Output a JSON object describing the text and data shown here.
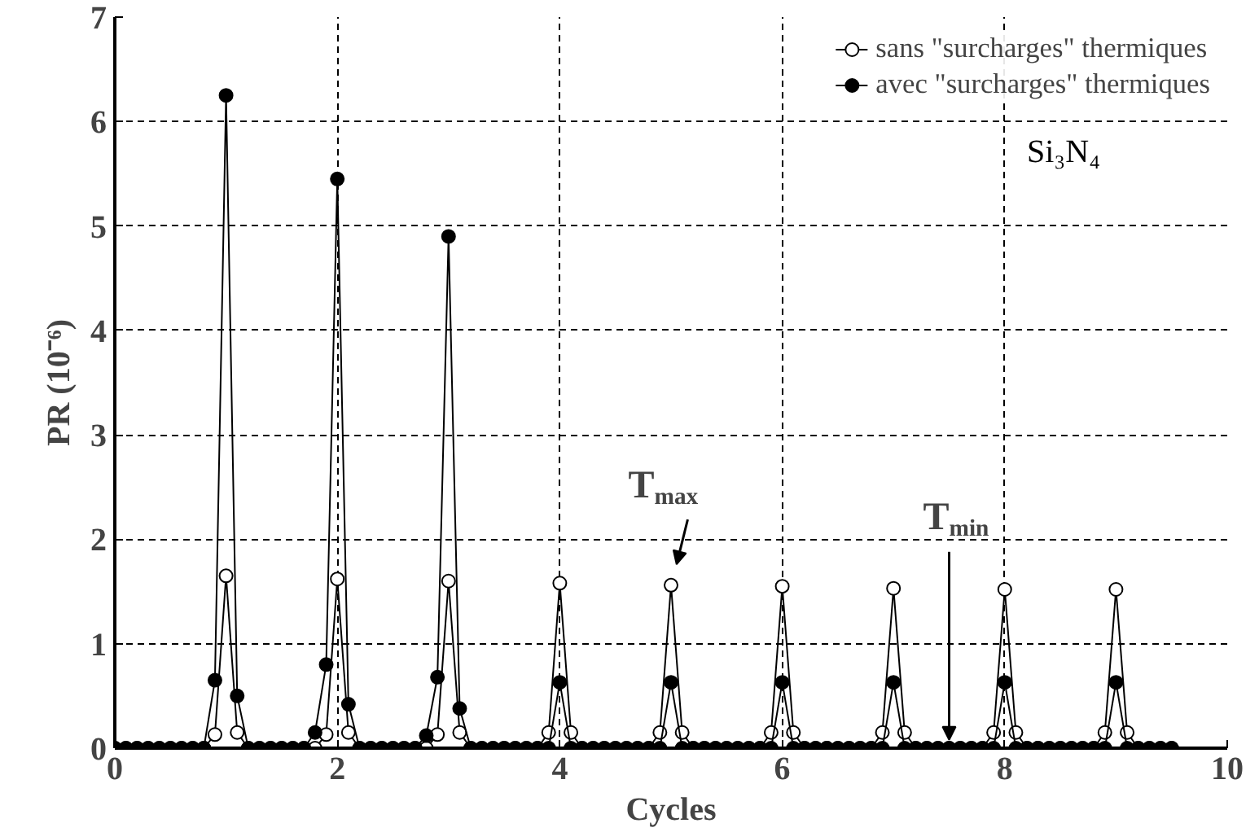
{
  "chart_data": {
    "type": "line",
    "xlabel": "Cycles",
    "ylabel": "PR (10⁻⁶)",
    "x": [
      0,
      0.1,
      0.2,
      0.3,
      0.4,
      0.5,
      0.6,
      0.7,
      0.8,
      0.9,
      1,
      1.1,
      1.2,
      1.3,
      1.4,
      1.5,
      1.6,
      1.7,
      1.8,
      1.9,
      2,
      2.1,
      2.2,
      2.3,
      2.4,
      2.5,
      2.6,
      2.7,
      2.8,
      2.9,
      3,
      3.1,
      3.2,
      3.3,
      3.4,
      3.5,
      3.6,
      3.7,
      3.8,
      3.9,
      4,
      4.1,
      4.2,
      4.3,
      4.4,
      4.5,
      4.6,
      4.7,
      4.8,
      4.9,
      5,
      5.1,
      5.2,
      5.3,
      5.4,
      5.5,
      5.6,
      5.7,
      5.8,
      5.9,
      6,
      6.1,
      6.2,
      6.3,
      6.4,
      6.5,
      6.6,
      6.7,
      6.8,
      6.9,
      7,
      7.1,
      7.2,
      7.3,
      7.4,
      7.5,
      7.6,
      7.7,
      7.8,
      7.9,
      8,
      8.1,
      8.2,
      8.3,
      8.4,
      8.5,
      8.6,
      8.7,
      8.8,
      8.9,
      9,
      9.1,
      9.2,
      9.3,
      9.4,
      9.5
    ],
    "series": [
      {
        "name": "sans \"surcharges\" thermiques",
        "color": "#000000",
        "values": [
          0,
          0,
          0,
          0,
          0,
          0,
          0,
          0,
          0,
          0.13,
          1.65,
          0.15,
          0,
          0,
          0,
          0,
          0,
          0,
          0,
          0.13,
          1.62,
          0.15,
          0,
          0,
          0,
          0,
          0,
          0,
          0,
          0.13,
          1.6,
          0.15,
          0,
          0,
          0,
          0,
          0,
          0,
          0,
          0.15,
          1.58,
          0.15,
          0,
          0,
          0,
          0,
          0,
          0,
          0,
          0.15,
          1.56,
          0.15,
          0,
          0,
          0,
          0,
          0,
          0,
          0,
          0.15,
          1.55,
          0.15,
          0,
          0,
          0,
          0,
          0,
          0,
          0,
          0.15,
          1.53,
          0.15,
          0,
          0,
          0,
          0,
          0,
          0,
          0,
          0.15,
          1.52,
          0.15,
          0,
          0,
          0,
          0,
          0,
          0,
          0,
          0.15,
          1.52,
          0.15,
          0,
          0,
          0,
          0
        ]
      },
      {
        "name": "avec \"surcharges\" thermiques",
        "color": "#000000",
        "values": [
          0,
          0,
          0,
          0,
          0,
          0,
          0,
          0,
          0,
          0.65,
          6.25,
          0.5,
          0,
          0,
          0,
          0,
          0,
          0,
          0.15,
          0.8,
          5.45,
          0.42,
          0,
          0,
          0,
          0,
          0,
          0,
          0.12,
          0.68,
          4.9,
          0.38,
          0,
          0,
          0,
          0,
          0,
          0,
          0,
          0,
          0.63,
          0,
          0,
          0,
          0,
          0,
          0,
          0,
          0,
          0,
          0.63,
          0,
          0,
          0,
          0,
          0,
          0,
          0,
          0,
          0,
          0.63,
          0,
          0,
          0,
          0,
          0,
          0,
          0,
          0,
          0,
          0.63,
          0,
          0,
          0,
          0,
          0,
          0,
          0,
          0,
          0,
          0.63,
          0,
          0,
          0,
          0,
          0,
          0,
          0,
          0,
          0,
          0.63,
          0,
          0,
          0,
          0,
          0
        ]
      }
    ],
    "xlim": [
      0,
      10
    ],
    "xticks": [
      0,
      2,
      4,
      6,
      8,
      10
    ],
    "ylim": [
      0,
      7
    ],
    "yticks": [
      0,
      1,
      2,
      3,
      4,
      5,
      6,
      7
    ],
    "grid": true,
    "legend": "top right",
    "marker": "circle",
    "line_style": "solid",
    "annotations": [
      "Si₃N₄",
      {
        "text": "T$_{max}$",
        "x": 5,
        "y": 1.56
      },
      {
        "text": "T$_{min}$",
        "x": 7.5,
        "y": 0
      }
    ]
  }
}
